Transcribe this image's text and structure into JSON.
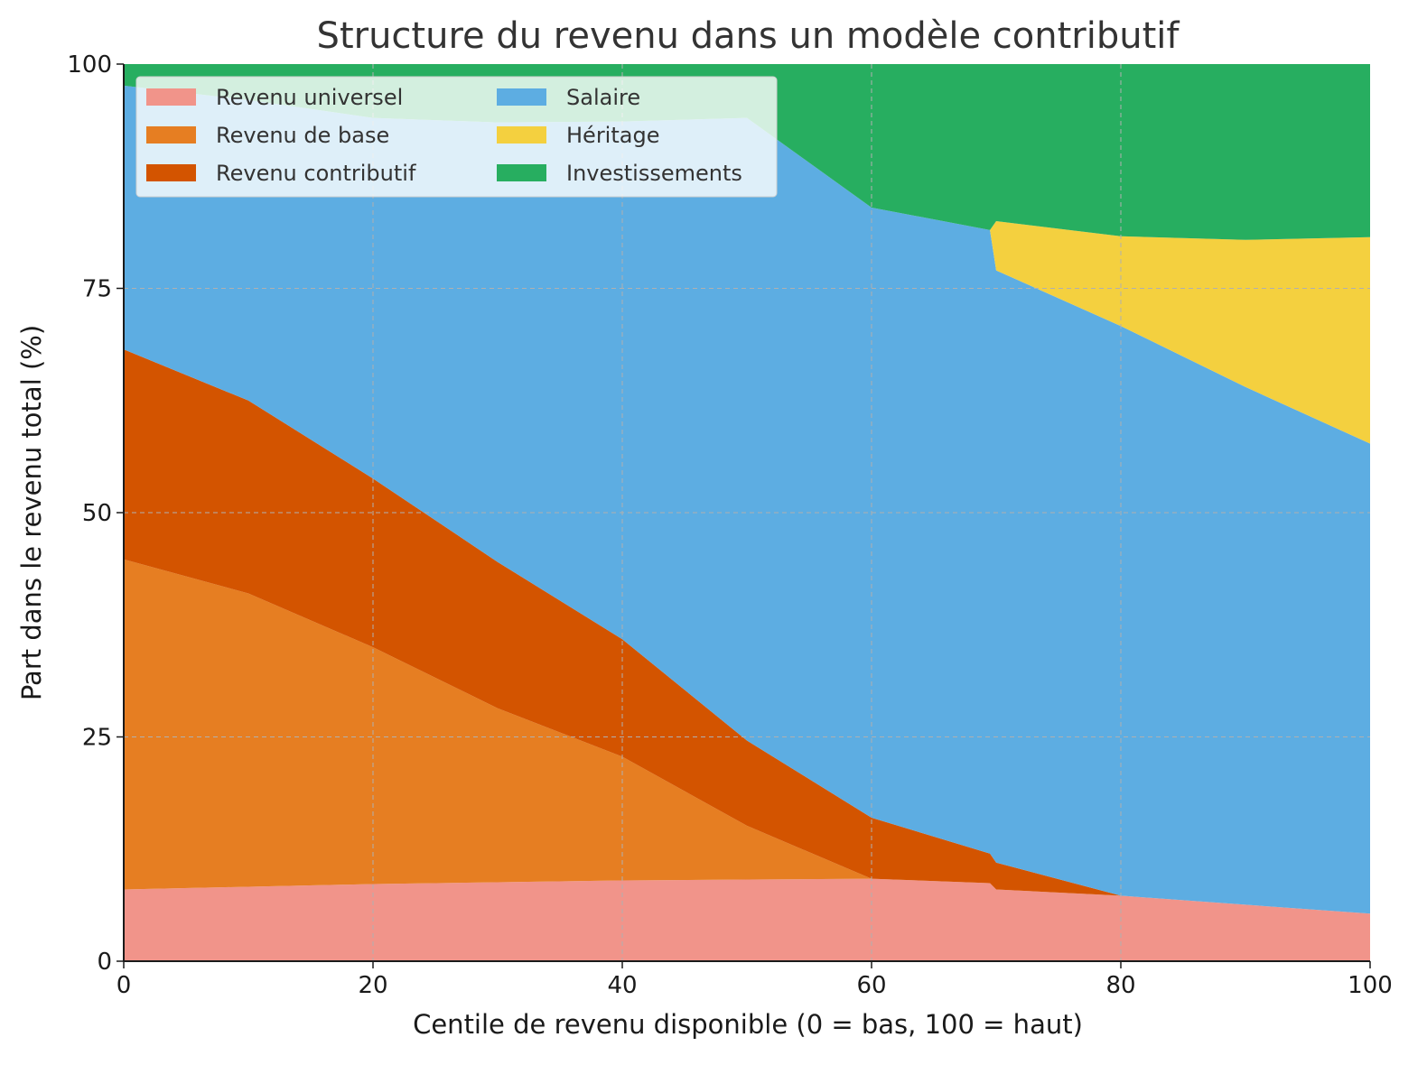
{
  "chart_data": {
    "type": "area",
    "stacked": true,
    "title": "Structure du revenu dans un modèle contributif",
    "xlabel": "Centile de revenu disponible (0 = bas, 100 = haut)",
    "ylabel": "Part dans le revenu total (%)",
    "xlim": [
      0,
      100
    ],
    "ylim": [
      0,
      100
    ],
    "x_ticks": [
      "0",
      "20",
      "40",
      "60",
      "80",
      "100"
    ],
    "y_ticks": [
      "0",
      "25",
      "50",
      "75",
      "100"
    ],
    "grid": true,
    "legend_position": "top-left",
    "x": [
      0,
      10,
      20,
      30,
      40,
      50,
      60,
      69.5,
      70,
      80,
      90,
      100
    ],
    "series": [
      {
        "name": "Revenu universel",
        "color": "#f1948a",
        "values": [
          8.0,
          8.3,
          8.6,
          8.8,
          9.0,
          9.1,
          9.2,
          8.7,
          8.0,
          7.3,
          6.3,
          5.3
        ]
      },
      {
        "name": "Revenu de base",
        "color": "#e67e22",
        "values": [
          36.8,
          32.7,
          26.4,
          19.4,
          13.8,
          6.0,
          0.0,
          0.0,
          0.0,
          0.0,
          0.0,
          0.0
        ]
      },
      {
        "name": "Revenu contributif",
        "color": "#d35400",
        "values": [
          23.4,
          21.5,
          18.8,
          16.3,
          13.1,
          9.5,
          6.8,
          3.3,
          3.0,
          0.0,
          0.0,
          0.0
        ]
      },
      {
        "name": "Salaire",
        "color": "#5dade2",
        "values": [
          29.4,
          33.5,
          40.2,
          49.0,
          57.7,
          69.4,
          68.0,
          69.5,
          66.0,
          63.5,
          57.7,
          52.4
        ]
      },
      {
        "name": "Héritage",
        "color": "#f4d03f",
        "values": [
          0.0,
          0.0,
          0.0,
          0.0,
          0.0,
          0.0,
          0.0,
          0.0,
          5.5,
          10.0,
          16.4,
          23.0
        ]
      },
      {
        "name": "Investissements",
        "color": "#27ae60",
        "values": [
          2.4,
          4.0,
          6.0,
          6.5,
          6.4,
          6.0,
          16.0,
          18.5,
          17.5,
          19.2,
          19.6,
          19.3
        ]
      }
    ]
  }
}
